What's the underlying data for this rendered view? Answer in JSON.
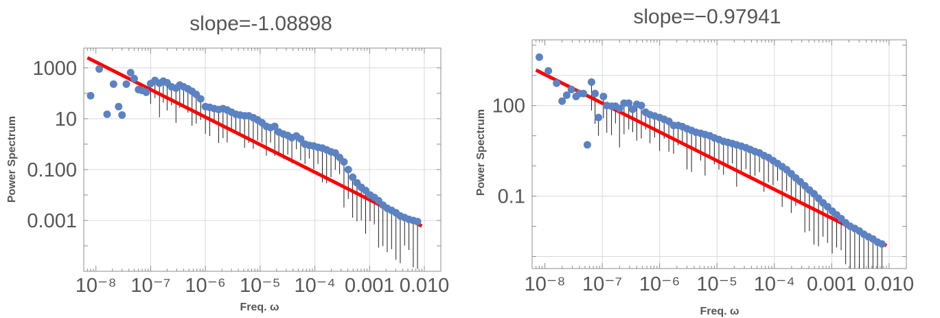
{
  "chart_data": [
    {
      "type": "scatter",
      "title": "slope=-1.08898",
      "xlabel": "Freq. ω",
      "ylabel": "Power Spectrum",
      "xscale": "log",
      "yscale": "log",
      "xlim": [
        6e-09,
        0.02
      ],
      "ylim": [
        1e-05,
        6000
      ],
      "xticks": [
        "10⁻⁸",
        "10⁻⁷",
        "10⁻⁶",
        "10⁻⁵",
        "10⁻⁴",
        "0.001",
        "0.010"
      ],
      "yticks": [
        "1000",
        "10",
        "0.100",
        "0.001"
      ],
      "grid": true,
      "fit_line": {
        "slope": -1.08898,
        "x": [
          7e-09,
          0.009
        ],
        "y": [
          2500,
          0.0006
        ]
      },
      "series": [
        {
          "x": [
            8e-09,
            1.15e-08,
            1.6e-08,
            2.1e-08,
            2.6e-08,
            3e-08,
            3.6e-08,
            4.3e-08,
            5e-08,
            6e-08,
            7e-08,
            8.3e-08,
            1e-07,
            1.2e-07,
            1.45e-07,
            1.7e-07,
            2e-07,
            2.4e-07,
            2.9e-07,
            3.4e-07,
            4e-07,
            4.8e-07,
            5.7e-07,
            6.8e-07,
            8.2e-07,
            1e-06,
            1.2e-06,
            1.45e-06,
            1.75e-06,
            2.1e-06,
            2.5e-06,
            3e-06,
            3.6e-06,
            4.3e-06,
            5.2e-06,
            6.2e-06,
            7.5e-06,
            9e-06,
            1.08e-05,
            1.3e-05,
            1.55e-05,
            1.85e-05,
            2.2e-05,
            2.65e-05,
            3.2e-05,
            3.8e-05,
            4.6e-05,
            5.5e-05,
            6.6e-05,
            7.9e-05,
            9.5e-05,
            0.000114,
            0.000137,
            0.000164,
            0.000197,
            0.000236,
            0.000283,
            0.00034,
            0.000408,
            0.00049,
            0.000588,
            0.000705,
            0.000846,
            0.00102,
            0.00122,
            0.00146,
            0.00175,
            0.0021,
            0.00252,
            0.00303,
            0.00363,
            0.00436,
            0.00523,
            0.00628,
            0.0075
          ],
          "y": [
            80,
            900,
            15,
            230,
            30,
            14,
            230,
            650,
            380,
            140,
            130,
            110,
            240,
            320,
            250,
            300,
            260,
            180,
            160,
            210,
            180,
            150,
            120,
            90,
            60,
            30,
            28,
            25,
            23,
            25,
            22,
            18,
            15,
            14,
            13,
            13,
            11,
            9,
            7,
            5,
            4.5,
            5,
            3,
            2.5,
            2.2,
            1.8,
            2.1,
            1.6,
            1,
            0.9,
            0.85,
            0.75,
            0.7,
            0.6,
            0.5,
            0.45,
            0.3,
            0.2,
            0.1,
            0.05,
            0.03,
            0.02,
            0.015,
            0.01,
            0.008,
            0.006,
            0.004,
            0.003,
            0.0025,
            0.002,
            0.0015,
            0.0013,
            0.0011,
            0.001,
            0.0009
          ]
        }
      ]
    },
    {
      "type": "scatter",
      "title": "slope=−0.97941",
      "xlabel": "Freq. ω",
      "ylabel": "Power Spectrum",
      "xscale": "log",
      "yscale": "log",
      "xlim": [
        6e-09,
        0.02
      ],
      "ylim": [
        0.0004,
        15000
      ],
      "xticks": [
        "10⁻⁸",
        "10⁻⁷",
        "10⁻⁶",
        "10⁻⁵",
        "10⁻⁴",
        "0.001",
        "0.010"
      ],
      "yticks": [
        "100",
        "0.1"
      ],
      "grid": true,
      "fit_line": {
        "slope": -0.97941,
        "x": [
          7e-09,
          0.009
        ],
        "y": [
          1500,
          0.0023
        ]
      },
      "series": [
        {
          "x": [
            8e-09,
            1.15e-08,
            1.6e-08,
            2e-08,
            2.4e-08,
            2.9e-08,
            3.5e-08,
            4e-08,
            4.7e-08,
            5.5e-08,
            6.5e-08,
            7.5e-08,
            8.6e-08,
            1.05e-07,
            1.2e-07,
            1.45e-07,
            1.7e-07,
            2e-07,
            2.4e-07,
            2.9e-07,
            3.4e-07,
            4e-07,
            4.8e-07,
            5.7e-07,
            6.8e-07,
            8.2e-07,
            1e-06,
            1.2e-06,
            1.45e-06,
            1.75e-06,
            2.1e-06,
            2.5e-06,
            3e-06,
            3.6e-06,
            4.3e-06,
            5.2e-06,
            6.2e-06,
            7.5e-06,
            9e-06,
            1.08e-05,
            1.3e-05,
            1.55e-05,
            1.85e-05,
            2.2e-05,
            2.65e-05,
            3.2e-05,
            3.8e-05,
            4.6e-05,
            5.5e-05,
            6.6e-05,
            7.9e-05,
            9.5e-05,
            0.000114,
            0.000137,
            0.000164,
            0.000197,
            0.000236,
            0.000283,
            0.00034,
            0.000408,
            0.00049,
            0.000588,
            0.000705,
            0.000846,
            0.00102,
            0.00122,
            0.00146,
            0.00175,
            0.0021,
            0.00252,
            0.00303,
            0.00363,
            0.00436,
            0.00523,
            0.00628,
            0.0075
          ],
          "y": [
            4000,
            1400,
            550,
            140,
            220,
            340,
            200,
            250,
            250,
            5,
            600,
            250,
            40,
            200,
            100,
            95,
            95,
            80,
            120,
            120,
            75,
            110,
            100,
            60,
            50,
            45,
            40,
            35,
            30,
            22,
            22,
            20,
            17,
            15,
            13,
            12,
            11,
            10,
            8.5,
            7.5,
            6.5,
            6,
            5.5,
            5,
            4.5,
            4,
            3.5,
            3,
            2.7,
            2.2,
            1.9,
            1.5,
            1.2,
            0.95,
            0.75,
            0.55,
            0.4,
            0.3,
            0.22,
            0.16,
            0.12,
            0.085,
            0.06,
            0.045,
            0.032,
            0.024,
            0.018,
            0.013,
            0.01,
            0.0085,
            0.007,
            0.0055,
            0.0045,
            0.0038,
            0.003,
            0.0026
          ]
        }
      ]
    }
  ]
}
